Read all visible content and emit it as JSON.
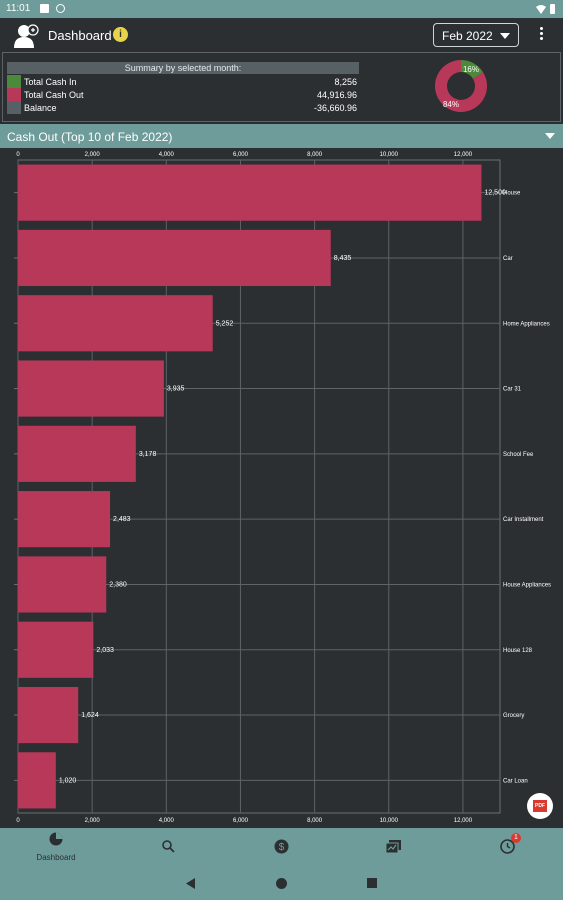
{
  "status_bar": {
    "time": "11:01"
  },
  "app_bar": {
    "title": "Dashboard",
    "info_icon": "info-icon",
    "month_selected": "Feb 2022"
  },
  "summary": {
    "heading": "Summary by selected month:",
    "rows": [
      {
        "label": "Total Cash In",
        "value": "8,256",
        "color": "#4a8a3a"
      },
      {
        "label": "Total Cash Out",
        "value": "44,916.96",
        "color": "#b8385a"
      },
      {
        "label": "Balance",
        "value": "-36,660.96",
        "color": "#566065"
      }
    ],
    "donut": {
      "in_label": "16%",
      "out_label": "84%",
      "in_fraction": 0.16,
      "out_fraction": 0.84
    }
  },
  "section": {
    "title": "Cash Out (Top 10 of Feb 2022)"
  },
  "chart_data": {
    "type": "bar",
    "orientation": "horizontal",
    "categories": [
      "House",
      "Car",
      "Home Appliances",
      "Car 31",
      "School Fee",
      "Car Installment",
      "House Appliances",
      "House 128",
      "Grocery",
      "Car Loan"
    ],
    "values": [
      12500,
      8435,
      5252,
      3935,
      3178,
      2483,
      2380,
      2033,
      1624,
      1020
    ],
    "value_labels": [
      "12,500",
      "8,435",
      "5,252",
      "3,935",
      "3,178",
      "2,483",
      "2,380",
      "2,033",
      "1,624",
      "1,020"
    ],
    "xlim": [
      0,
      13000
    ],
    "xticks": [
      0,
      2000,
      4000,
      6000,
      8000,
      10000,
      12000
    ],
    "xtick_labels": [
      "0",
      "2,000",
      "4,000",
      "6,000",
      "8,000",
      "10,000",
      "12,000"
    ],
    "bar_color": "#b8385a",
    "grid": true
  },
  "bottom_nav": {
    "items": [
      {
        "label": "Dashboard",
        "icon": "pie-chart-icon"
      },
      {
        "label": "",
        "icon": "search-icon"
      },
      {
        "label": "",
        "icon": "dollar-icon"
      },
      {
        "label": "",
        "icon": "report-icon"
      },
      {
        "label": "",
        "icon": "clock-icon",
        "badge": "1"
      }
    ]
  },
  "pdf_button": {
    "label": "PDF"
  }
}
